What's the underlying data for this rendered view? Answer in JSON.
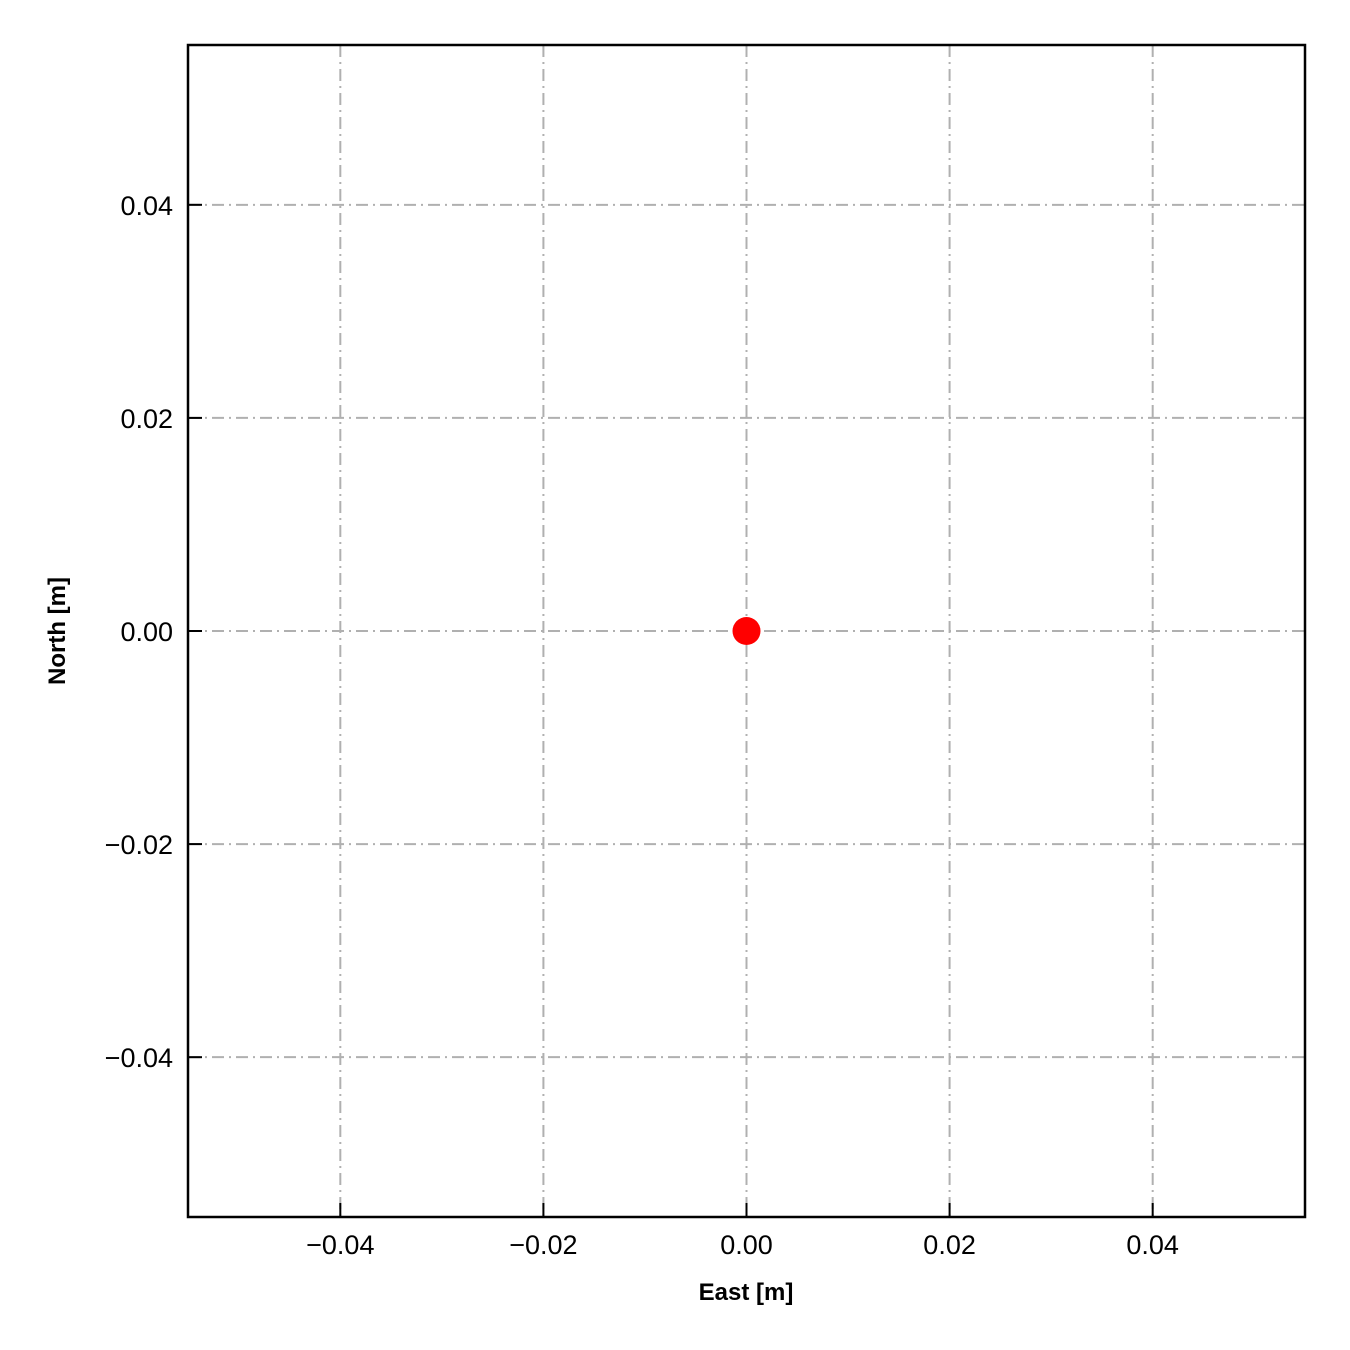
{
  "chart_data": {
    "type": "scatter",
    "title": "",
    "xlabel": "East [m]",
    "ylabel": "North [m]",
    "xlim": [
      -0.055,
      0.055
    ],
    "ylim": [
      -0.055,
      0.055
    ],
    "xticks": [
      -0.04,
      -0.02,
      0.0,
      0.02,
      0.04
    ],
    "yticks": [
      -0.04,
      -0.02,
      0.0,
      0.02,
      0.04
    ],
    "xtick_labels": [
      "−0.04",
      "−0.02",
      "0.00",
      "0.02",
      "0.04"
    ],
    "ytick_labels": [
      "−0.04",
      "−0.02",
      "0.00",
      "0.02",
      "0.04"
    ],
    "grid": true,
    "grid_style": "dash-dot",
    "grid_color": "#b0b0b0",
    "series": [
      {
        "x": [
          0.0
        ],
        "y": [
          0.0
        ],
        "color": "#ff0000",
        "marker": "circle"
      }
    ]
  }
}
